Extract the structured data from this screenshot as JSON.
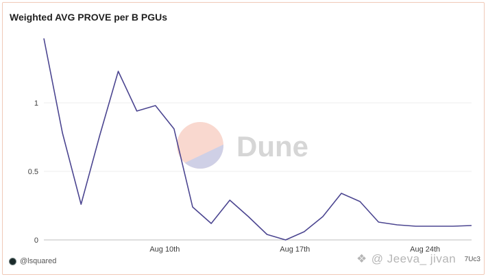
{
  "title": "Weighted AVG PROVE per B PGUs",
  "footer": {
    "user": "@lsquared"
  },
  "watermark": {
    "brand": "Dune",
    "user": "@ Jeeva_ jivan",
    "stamp": "7Uc3"
  },
  "colors": {
    "line": "#4b4590",
    "grid": "#ececec",
    "border": "#f0c9b7"
  },
  "chart_data": {
    "type": "line",
    "x": [
      "Aug 3",
      "Aug 4",
      "Aug 5",
      "Aug 6",
      "Aug 7",
      "Aug 8",
      "Aug 9",
      "Aug 10",
      "Aug 11",
      "Aug 12",
      "Aug 13",
      "Aug 14",
      "Aug 15",
      "Aug 16",
      "Aug 17",
      "Aug 18",
      "Aug 19",
      "Aug 20",
      "Aug 21",
      "Aug 22",
      "Aug 23",
      "Aug 24",
      "Aug 25",
      "Aug 26"
    ],
    "series": [
      {
        "values": [
          1.47,
          0.78,
          0.26,
          0.76,
          1.23,
          0.94,
          0.98,
          0.81,
          0.24,
          0.12,
          0.29,
          0.17,
          0.04,
          0.0,
          0.06,
          0.17,
          0.34,
          0.28,
          0.13,
          0.11,
          0.1,
          0.1,
          0.1,
          0.105
        ]
      }
    ],
    "x_ticks": [
      "Aug 10th",
      "Aug 17th",
      "Aug 24th"
    ],
    "y_ticks": [
      "0",
      "0.5",
      "1"
    ],
    "ylim": [
      0,
      1.5
    ],
    "grid": true,
    "legend": "none"
  }
}
